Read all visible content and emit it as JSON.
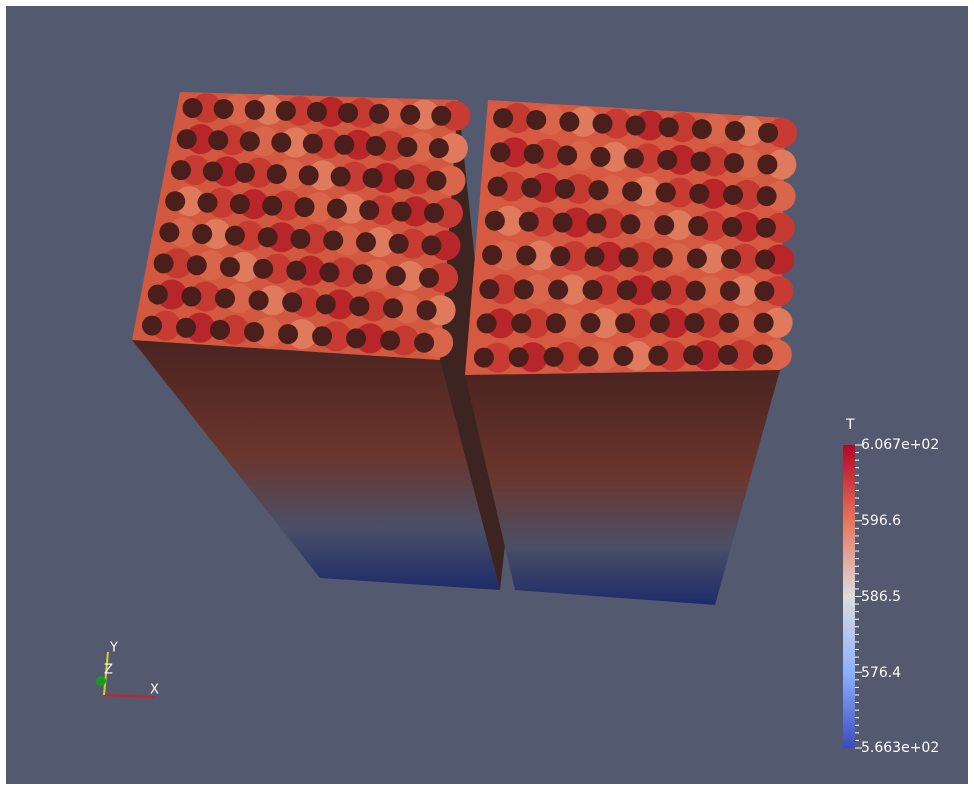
{
  "colorbar": {
    "title": "T",
    "labels": [
      "6.067e+02",
      "596.6",
      "586.5",
      "576.4",
      "5.663e+02"
    ]
  },
  "axes": {
    "x": "X",
    "y": "Y",
    "z": "Z"
  }
}
